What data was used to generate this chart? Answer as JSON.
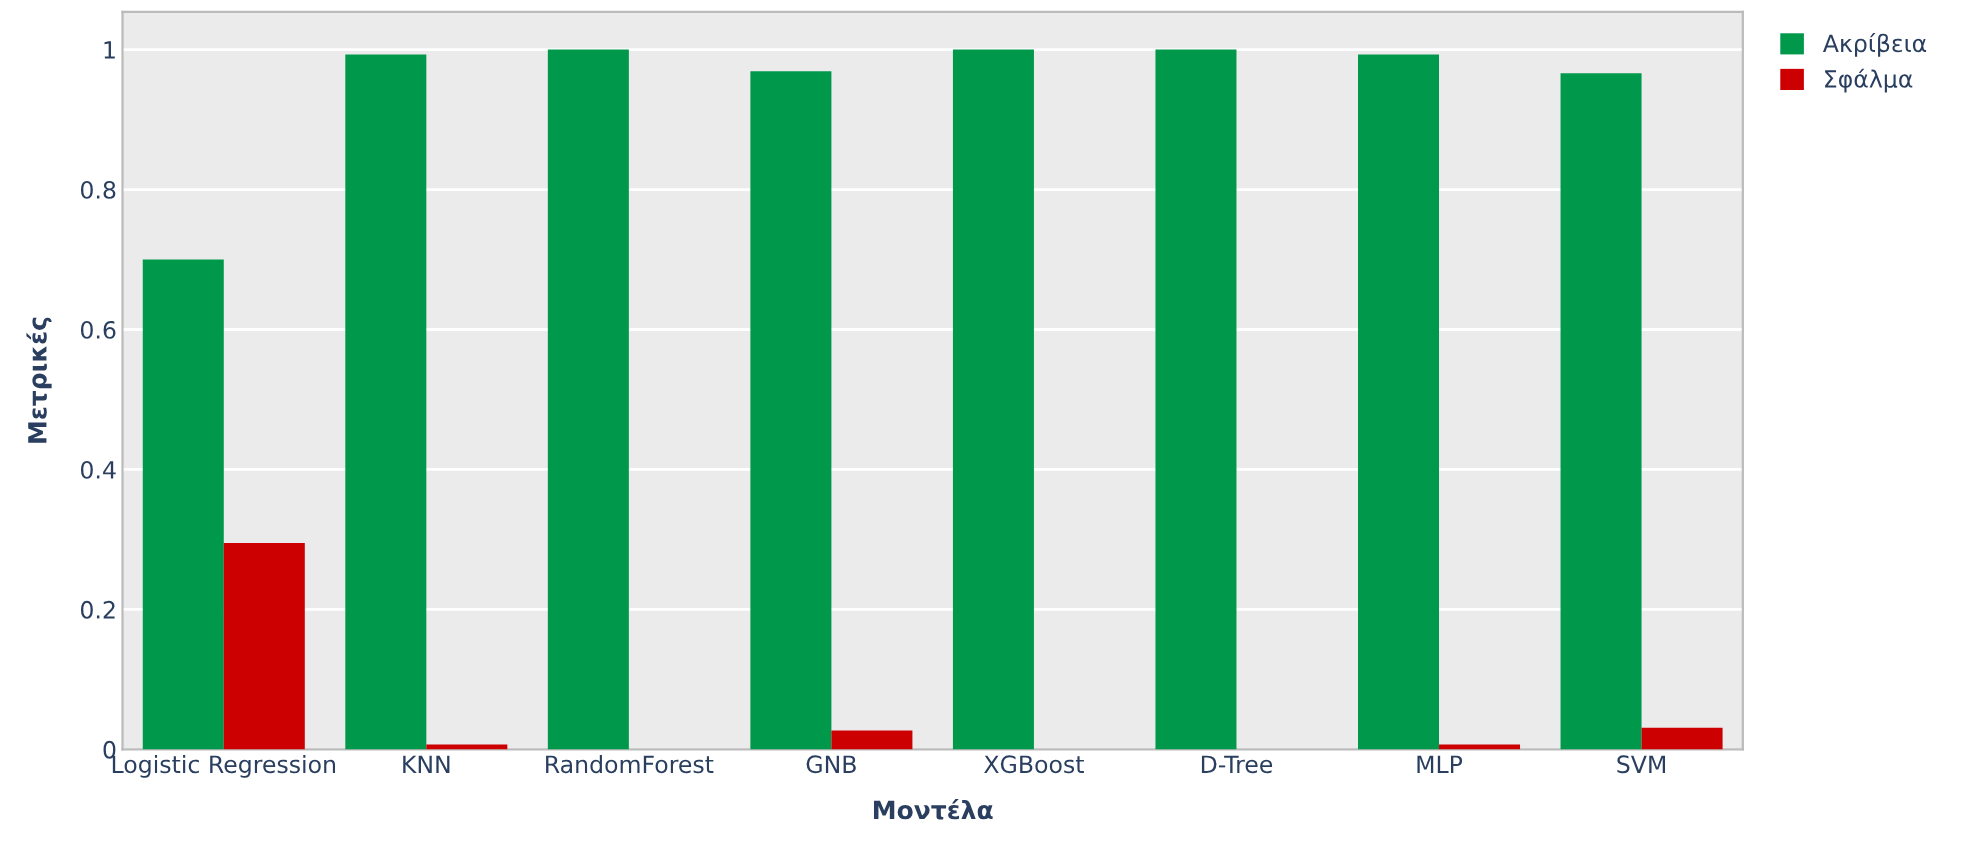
{
  "chart_data": {
    "type": "bar",
    "xlabel": "Μοντέλα",
    "ylabel": "Μετρικές",
    "categories": [
      "Logistic Regression",
      "KNN",
      "RandomForest",
      "GNB",
      "XGBoost",
      "D-Tree",
      "MLP",
      "SVM"
    ],
    "series": [
      {
        "name": "Ακρίβεια",
        "color": "#00994c",
        "values": [
          0.7,
          0.993,
          1.0,
          0.969,
          1.0,
          1.0,
          0.993,
          0.966
        ]
      },
      {
        "name": "Σφάλμα",
        "color": "#cc0000",
        "values": [
          0.295,
          0.007,
          0.0,
          0.027,
          0.0,
          null,
          0.007,
          0.031
        ]
      }
    ],
    "ylim": [
      0,
      1.054
    ],
    "yticks": [
      0,
      0.2,
      0.4,
      0.6,
      0.8,
      1
    ],
    "grid": "y",
    "legend": "top right"
  }
}
